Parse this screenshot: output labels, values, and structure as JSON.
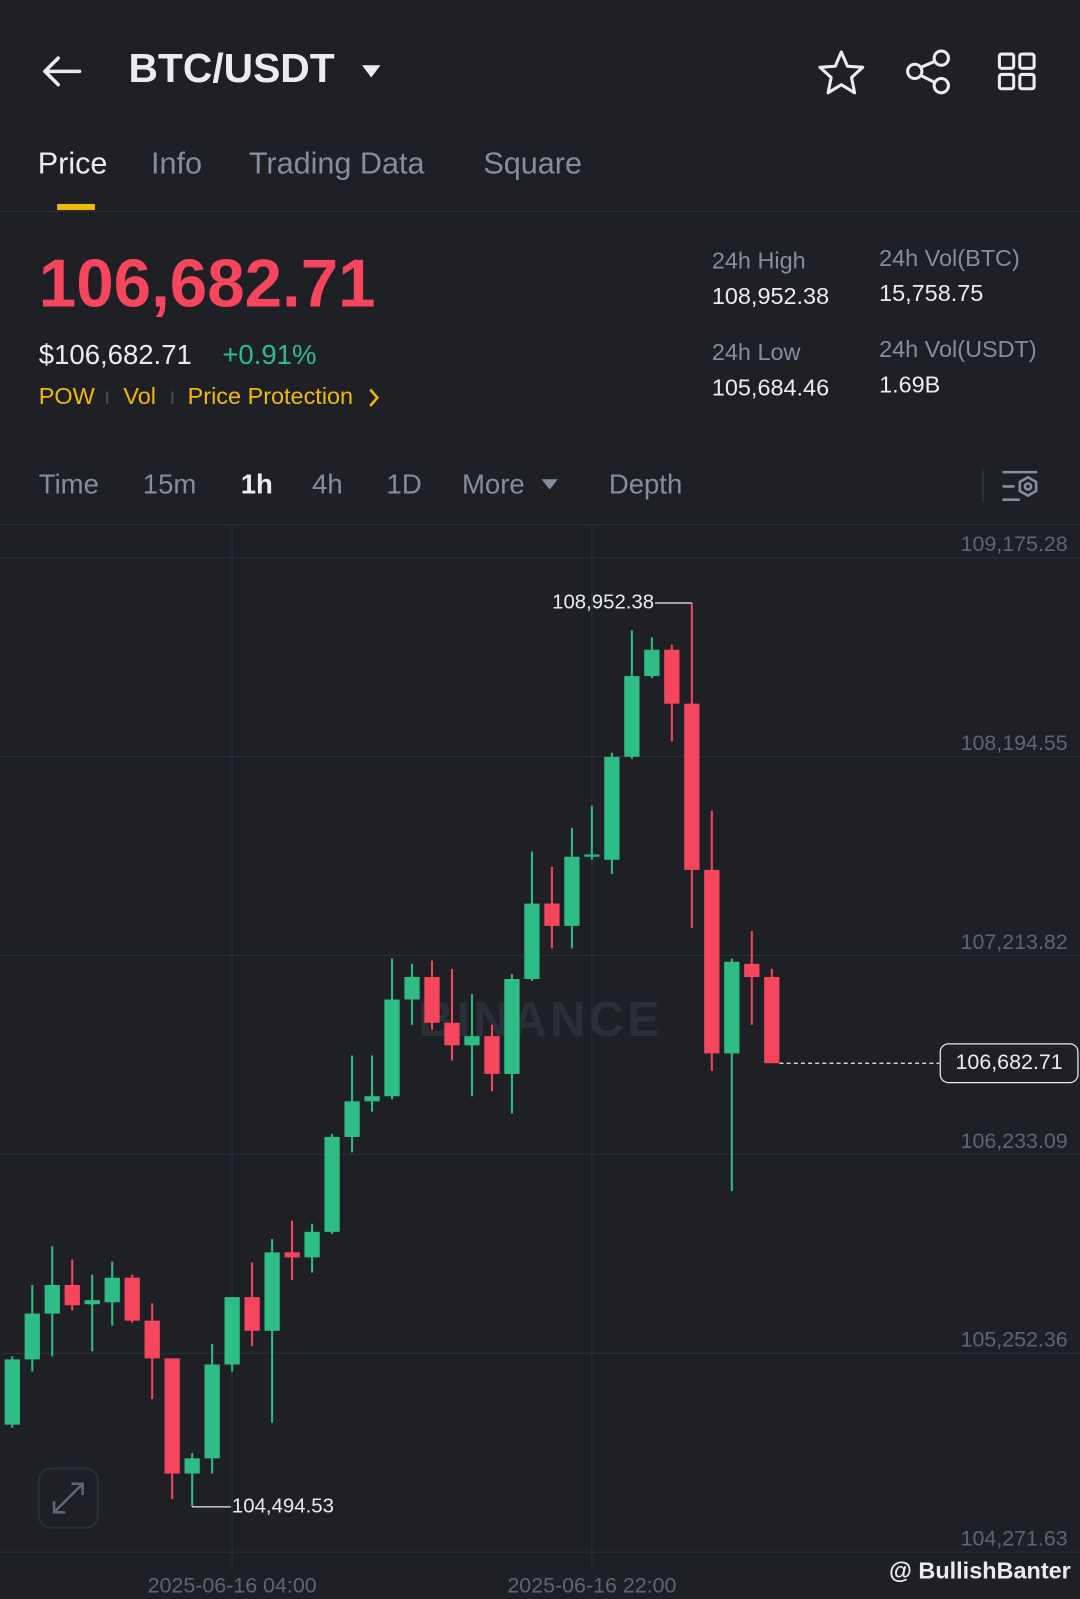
{
  "header": {
    "title": "BTC/USDT"
  },
  "tabs": [
    "Price",
    "Info",
    "Trading Data",
    "Square"
  ],
  "ticker": {
    "price": "106,682.71",
    "price_usd": "$106,682.71",
    "change": "+0.91%",
    "tags": [
      "POW",
      "Vol",
      "Price Protection"
    ],
    "stats": [
      {
        "label": "24h High",
        "value": "108,952.38"
      },
      {
        "label": "24h Low",
        "value": "105,684.46"
      },
      {
        "label": "24h Vol(BTC)",
        "value": "15,758.75"
      },
      {
        "label": "24h Vol(USDT)",
        "value": "1.69B"
      }
    ]
  },
  "intervals": [
    "Time",
    "15m",
    "1h",
    "4h",
    "1D",
    "More",
    "Depth"
  ],
  "watermark": "BINANCE",
  "credit": "@ BullishBanter",
  "chart_data": {
    "type": "candlestick",
    "categories": [
      null,
      null,
      null,
      null,
      null,
      null,
      null,
      null,
      null,
      null,
      null,
      "2025-06-16 04:00",
      null,
      null,
      null,
      null,
      null,
      null,
      null,
      null,
      null,
      null,
      null,
      null,
      null,
      null,
      null,
      null,
      null,
      "2025-06-16 22:00",
      null,
      null,
      null,
      null,
      null,
      null,
      null,
      null,
      null
    ],
    "open": [
      104900,
      105222,
      105448,
      105589,
      105494,
      105504,
      105625,
      105413,
      105227,
      104659,
      104734,
      105197,
      105529,
      105363,
      105750,
      105725,
      105851,
      106319,
      106495,
      106520,
      106997,
      107108,
      106882,
      106771,
      106816,
      106630,
      107098,
      107470,
      107360,
      107701,
      107686,
      108194,
      108592,
      108722,
      108456,
      107636,
      106731,
      107173,
      107108
    ],
    "high": [
      105237,
      105589,
      105780,
      105715,
      105640,
      105705,
      105640,
      105499,
      105227,
      104760,
      105298,
      105529,
      105700,
      105816,
      105906,
      105891,
      106334,
      106721,
      106721,
      107199,
      107173,
      107189,
      107148,
      107023,
      106872,
      107123,
      107727,
      107651,
      107842,
      107953,
      108214,
      108818,
      108783,
      108747,
      108952.38,
      107928,
      107199,
      107334,
      107148
    ],
    "low": [
      104885,
      105162,
      105237,
      105464,
      105262,
      105388,
      105403,
      105026,
      104533,
      104494.53,
      104659,
      105162,
      105288,
      104910,
      105614,
      105650,
      105841,
      106243,
      106444,
      106505,
      106872,
      106847,
      106696,
      106520,
      106545,
      106434,
      107088,
      107249,
      107249,
      107686,
      107616,
      108184,
      108582,
      108270,
      107349,
      106645,
      106052,
      106872,
      106682.71
    ],
    "close": [
      105222,
      105448,
      105589,
      105489,
      105514,
      105625,
      105413,
      105227,
      104659,
      104734,
      105197,
      105529,
      105363,
      105750,
      105725,
      105851,
      106319,
      106495,
      106520,
      106997,
      107108,
      106882,
      106771,
      106816,
      106630,
      107098,
      107470,
      107360,
      107701,
      107712,
      108194,
      108592,
      108722,
      108456,
      107636,
      106731,
      107183,
      107108,
      106682.71
    ],
    "up_color": "#2ebd85",
    "down_color": "#f6465d",
    "ylim": [
      104271.63,
      109175.28
    ],
    "yticks": [
      {
        "value": 109175.28,
        "label": "109,175.28"
      },
      {
        "value": 108194.55,
        "label": "108,194.55"
      },
      {
        "value": 107213.82,
        "label": "107,213.82"
      },
      {
        "value": 106233.09,
        "label": "106,233.09"
      },
      {
        "value": 105252.36,
        "label": "105,252.36"
      },
      {
        "value": 104271.63,
        "label": "104,271.63"
      }
    ],
    "grid": true,
    "annotations": [
      {
        "value": 108952.38,
        "label": "108,952.38"
      },
      {
        "value": 104494.53,
        "label": "104,494.53"
      }
    ],
    "last_price": {
      "value": 106682.71,
      "label": "106,682.71"
    }
  }
}
